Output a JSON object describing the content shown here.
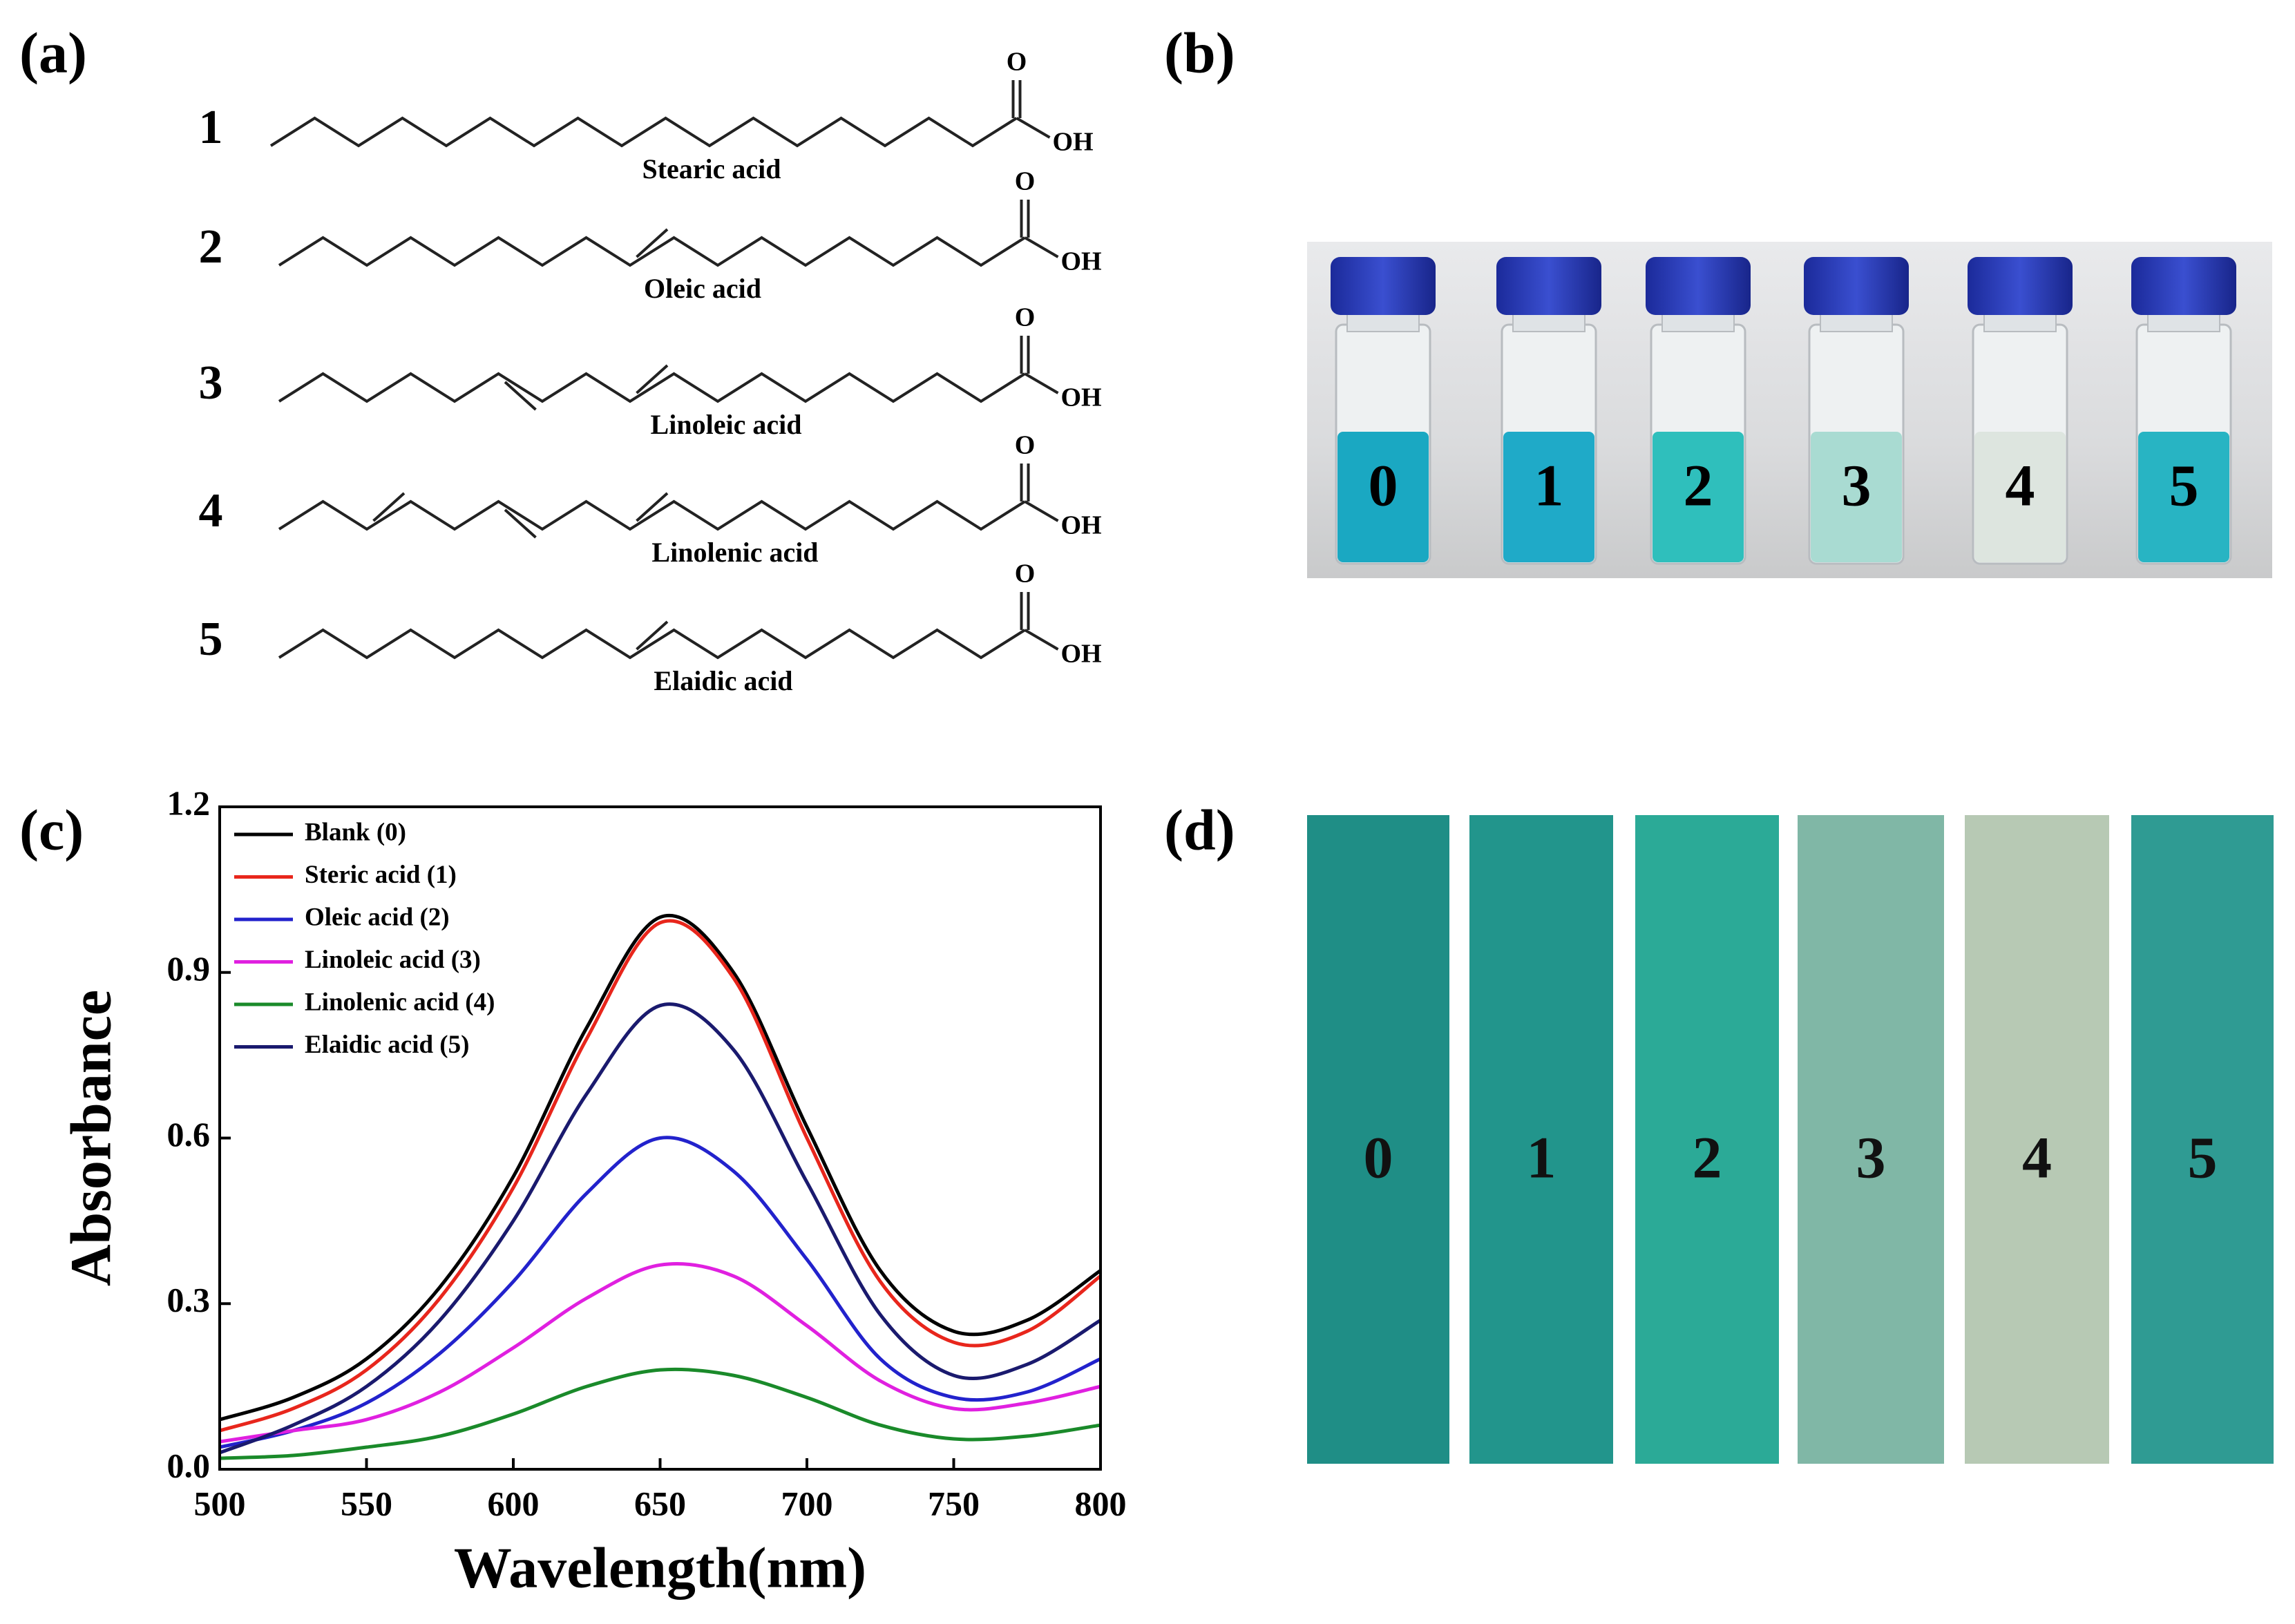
{
  "panel_a": {
    "label": "(a)",
    "molecules": [
      {
        "number": "1",
        "name": "Stearic acid",
        "oxygen": "O",
        "hydroxyl": "OH"
      },
      {
        "number": "2",
        "name": "Oleic acid",
        "oxygen": "O",
        "hydroxyl": "OH"
      },
      {
        "number": "3",
        "name": "Linoleic acid",
        "oxygen": "O",
        "hydroxyl": "OH"
      },
      {
        "number": "4",
        "name": "Linolenic acid",
        "oxygen": "O",
        "hydroxyl": "OH"
      },
      {
        "number": "5",
        "name": "Elaidic acid",
        "oxygen": "O",
        "hydroxyl": "OH"
      }
    ]
  },
  "panel_b": {
    "label": "(b)",
    "vials": [
      "0",
      "1",
      "2",
      "3",
      "4",
      "5"
    ]
  },
  "chart_data": {
    "type": "line",
    "panel_label": "(c)",
    "x_label": "Wavelength(nm)",
    "y_label": "Absorbance",
    "x": [
      500,
      525,
      550,
      575,
      600,
      625,
      650,
      675,
      700,
      725,
      750,
      775,
      800
    ],
    "series": [
      {
        "name": "Blank (0)",
        "color": "#000000",
        "values": [
          0.09,
          0.13,
          0.2,
          0.33,
          0.53,
          0.8,
          1.0,
          0.9,
          0.62,
          0.36,
          0.25,
          0.27,
          0.36
        ]
      },
      {
        "name": "Steric acid (1)",
        "color": "#e8261c",
        "values": [
          0.07,
          0.11,
          0.18,
          0.31,
          0.51,
          0.78,
          0.99,
          0.89,
          0.6,
          0.34,
          0.23,
          0.25,
          0.35
        ]
      },
      {
        "name": "Oleic acid (2)",
        "color": "#2222cc",
        "values": [
          0.04,
          0.07,
          0.12,
          0.21,
          0.34,
          0.5,
          0.6,
          0.54,
          0.38,
          0.2,
          0.13,
          0.14,
          0.2
        ]
      },
      {
        "name": "Linoleic acid (3)",
        "color": "#e020e0",
        "values": [
          0.05,
          0.07,
          0.09,
          0.14,
          0.22,
          0.31,
          0.37,
          0.35,
          0.26,
          0.16,
          0.11,
          0.12,
          0.15
        ]
      },
      {
        "name": "Linolenic acid (4)",
        "color": "#1a8a2a",
        "values": [
          0.02,
          0.025,
          0.04,
          0.06,
          0.1,
          0.15,
          0.18,
          0.17,
          0.13,
          0.08,
          0.055,
          0.06,
          0.08
        ]
      },
      {
        "name": "Elaidic acid (5)",
        "color": "#1a1a6e",
        "values": [
          0.03,
          0.08,
          0.15,
          0.27,
          0.45,
          0.68,
          0.84,
          0.76,
          0.52,
          0.28,
          0.17,
          0.19,
          0.27
        ]
      }
    ],
    "xlim": [
      500,
      800
    ],
    "xticks": [
      500,
      550,
      600,
      650,
      700,
      750,
      800
    ],
    "ylim": [
      0,
      1.2
    ],
    "yticks": [
      {
        "value": 0,
        "label": "0.0"
      },
      0.3,
      0.6,
      0.9,
      1.2
    ],
    "legend": "upper left"
  },
  "panel_d": {
    "label": "(d)",
    "strips": [
      "0",
      "1",
      "2",
      "3",
      "4",
      "5"
    ]
  }
}
